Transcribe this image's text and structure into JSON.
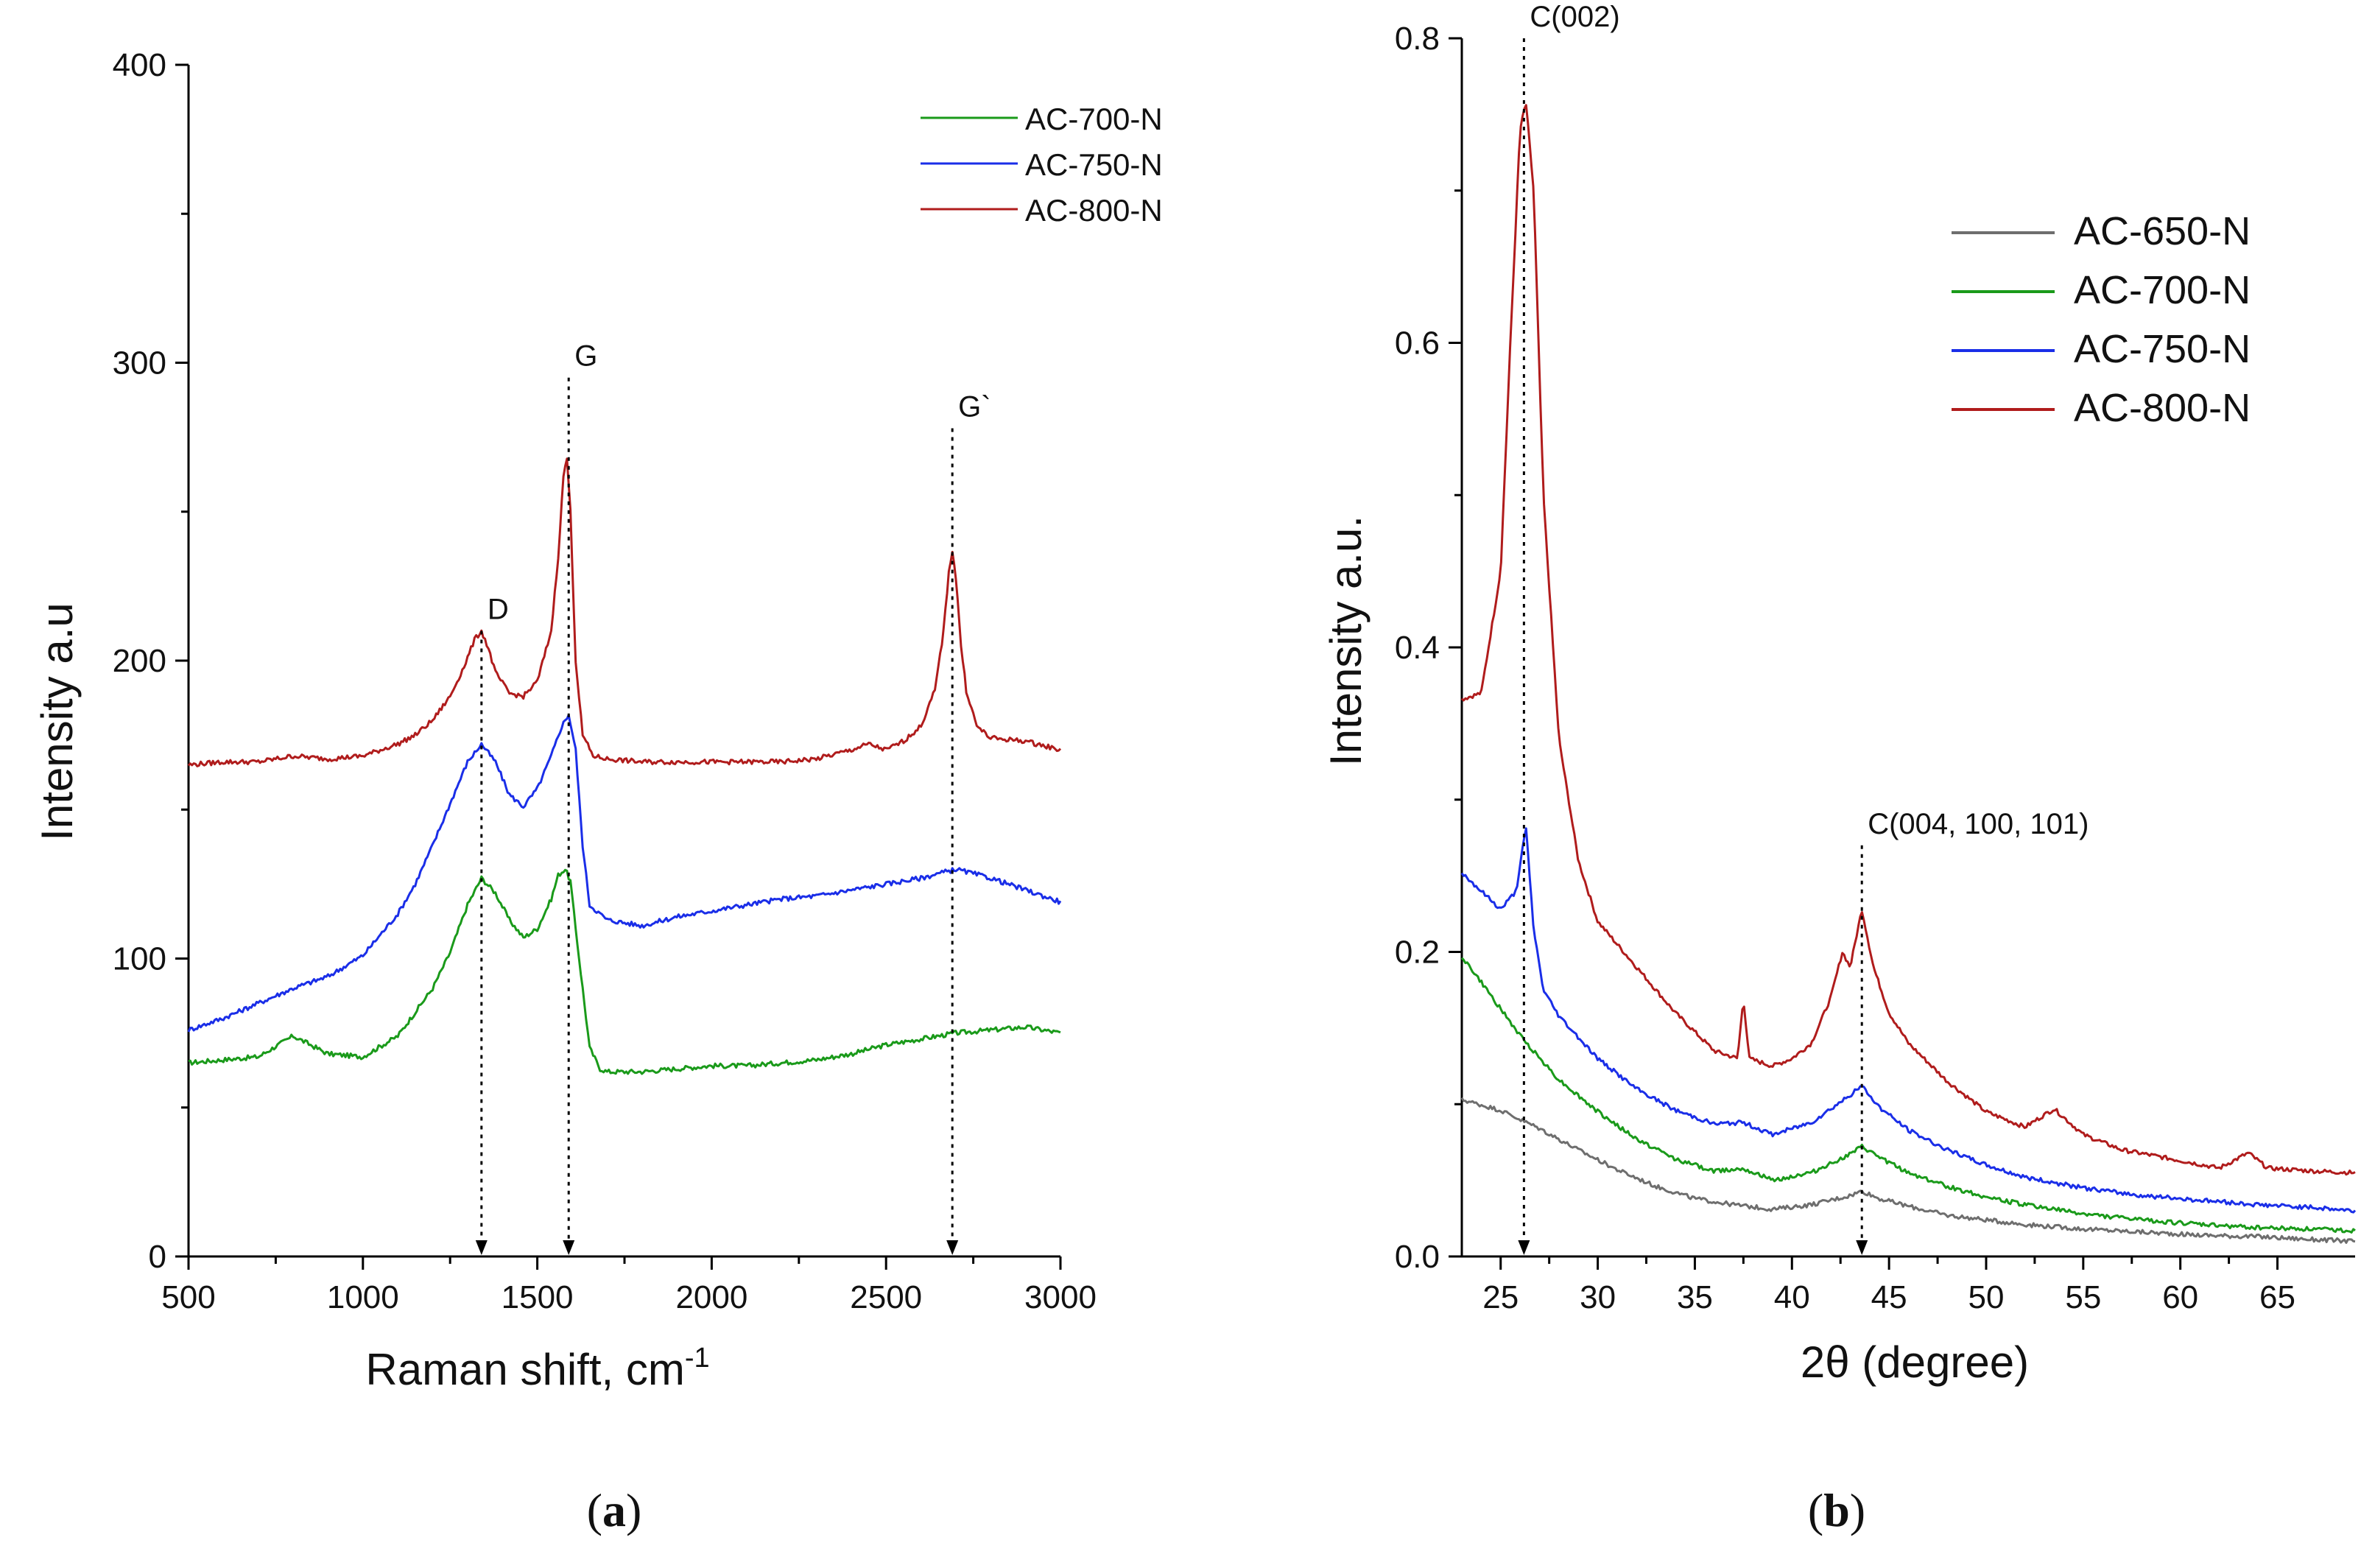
{
  "panels": {
    "a": {
      "label": "a"
    },
    "b": {
      "label": "b"
    }
  },
  "chart_data": [
    {
      "type": "line",
      "panel": "a",
      "xlabel": "Raman shift, cm",
      "xlabel_superscript": "-1",
      "ylabel": "Intensity a.u",
      "xlim": [
        500,
        3000
      ],
      "ylim": [
        0,
        400
      ],
      "xticks": [
        500,
        1000,
        1500,
        2000,
        2500,
        3000
      ],
      "yticks": [
        0,
        100,
        200,
        300,
        400
      ],
      "legend_position": "top-right",
      "series": [
        {
          "name": "AC-700-N",
          "color": "#1a9a1a",
          "x": [
            500,
            700,
            800,
            900,
            1000,
            1100,
            1200,
            1250,
            1300,
            1340,
            1380,
            1420,
            1460,
            1500,
            1540,
            1560,
            1580,
            1595,
            1610,
            1630,
            1650,
            1680,
            1700,
            1750,
            1800,
            1900,
            2000,
            2100,
            2200,
            2300,
            2400,
            2500,
            2600,
            2700,
            2800,
            2900,
            3000
          ],
          "y": [
            65,
            67,
            74,
            68,
            67,
            74,
            90,
            102,
            118,
            127,
            122,
            113,
            107,
            110,
            120,
            128,
            130,
            126,
            110,
            90,
            70,
            63,
            62,
            62,
            62,
            63,
            64,
            64,
            65,
            66,
            68,
            71,
            73,
            75,
            76,
            77,
            75
          ]
        },
        {
          "name": "AC-750-N",
          "color": "#1a2ee8",
          "x": [
            500,
            600,
            700,
            800,
            900,
            1000,
            1100,
            1150,
            1200,
            1250,
            1300,
            1340,
            1380,
            1420,
            1460,
            1500,
            1540,
            1570,
            1590,
            1610,
            1630,
            1650,
            1700,
            1750,
            1800,
            1900,
            2000,
            2100,
            2200,
            2300,
            2400,
            2500,
            2600,
            2700,
            2800,
            2900,
            3000
          ],
          "y": [
            76,
            80,
            85,
            90,
            94,
            101,
            115,
            125,
            138,
            152,
            166,
            172,
            166,
            155,
            151,
            157,
            168,
            178,
            182,
            170,
            138,
            118,
            113,
            112,
            111,
            114,
            116,
            118,
            120,
            121,
            123,
            125,
            127,
            130,
            127,
            123,
            119
          ]
        },
        {
          "name": "AC-800-N",
          "color": "#b01c1c",
          "x": [
            500,
            600,
            700,
            800,
            900,
            1000,
            1100,
            1150,
            1200,
            1250,
            1290,
            1320,
            1340,
            1360,
            1380,
            1420,
            1460,
            1500,
            1540,
            1560,
            1575,
            1585,
            1595,
            1610,
            1630,
            1660,
            1700,
            1800,
            1900,
            2000,
            2100,
            2200,
            2300,
            2400,
            2450,
            2500,
            2550,
            2600,
            2640,
            2665,
            2680,
            2690,
            2700,
            2715,
            2730,
            2760,
            2800,
            2900,
            3000
          ],
          "y": [
            165,
            166,
            166,
            168,
            167,
            168,
            172,
            175,
            180,
            188,
            198,
            207,
            210,
            204,
            196,
            189,
            188,
            193,
            210,
            235,
            262,
            268,
            250,
            200,
            175,
            168,
            167,
            166,
            166,
            166,
            166,
            166,
            167,
            170,
            172,
            170,
            173,
            178,
            190,
            210,
            230,
            237,
            228,
            205,
            190,
            178,
            174,
            173,
            170
          ]
        }
      ],
      "annotations": [
        {
          "label": "D",
          "x": 1340,
          "y": 210
        },
        {
          "label": "G",
          "x": 1590,
          "y": 295
        },
        {
          "label": "G`",
          "x": 2690,
          "y": 278
        }
      ]
    },
    {
      "type": "line",
      "panel": "b",
      "xlabel": "2θ (degree)",
      "ylabel": "Intensity a.u.",
      "xlim": [
        23,
        69
      ],
      "ylim": [
        0,
        0.8
      ],
      "xticks": [
        25,
        30,
        35,
        40,
        45,
        50,
        55,
        60,
        65
      ],
      "yticks": [
        "0.0",
        "0.2",
        "0.4",
        "0.6",
        "0.8"
      ],
      "legend_position": "top-right",
      "series": [
        {
          "name": "AC-650-N",
          "color": "#6e6e6e",
          "x": [
            23,
            25,
            27,
            29,
            31,
            33,
            35,
            37,
            39,
            41,
            43,
            43.6,
            44.5,
            46,
            48,
            50,
            52,
            55,
            58,
            61,
            64,
            67,
            69
          ],
          "y": [
            0.103,
            0.096,
            0.084,
            0.07,
            0.057,
            0.046,
            0.038,
            0.034,
            0.031,
            0.034,
            0.04,
            0.043,
            0.038,
            0.033,
            0.027,
            0.024,
            0.021,
            0.018,
            0.016,
            0.014,
            0.013,
            0.011,
            0.01
          ]
        },
        {
          "name": "AC-700-N",
          "color": "#1a9a1a",
          "x": [
            23,
            24,
            26,
            28,
            30,
            32,
            34,
            36,
            37.5,
            39,
            41,
            43,
            43.6,
            44.5,
            46,
            48,
            50,
            52,
            55,
            58,
            61,
            64,
            67,
            69
          ],
          "y": [
            0.197,
            0.18,
            0.145,
            0.116,
            0.095,
            0.077,
            0.064,
            0.056,
            0.058,
            0.05,
            0.055,
            0.067,
            0.072,
            0.065,
            0.055,
            0.046,
            0.039,
            0.034,
            0.028,
            0.024,
            0.021,
            0.019,
            0.018,
            0.017
          ]
        },
        {
          "name": "AC-750-N",
          "color": "#1a2ee8",
          "x": [
            23,
            24,
            25,
            25.8,
            26.3,
            26.7,
            27.2,
            28,
            30,
            32,
            34,
            36,
            37.5,
            39,
            41,
            43,
            43.6,
            44.5,
            46,
            48,
            50,
            52,
            55,
            58,
            61,
            64,
            67,
            69
          ],
          "y": [
            0.252,
            0.24,
            0.228,
            0.24,
            0.282,
            0.215,
            0.175,
            0.158,
            0.13,
            0.11,
            0.096,
            0.087,
            0.088,
            0.08,
            0.088,
            0.106,
            0.112,
            0.098,
            0.083,
            0.07,
            0.06,
            0.052,
            0.045,
            0.04,
            0.037,
            0.034,
            0.032,
            0.03
          ]
        },
        {
          "name": "AC-800-N",
          "color": "#b01c1c",
          "x": [
            23,
            24,
            25,
            25.5,
            26,
            26.3,
            26.7,
            27.2,
            28,
            29,
            30,
            32,
            34,
            36,
            37.2,
            37.5,
            37.8,
            39,
            40,
            41,
            42,
            42.6,
            43,
            43.6,
            44.2,
            45,
            46,
            48,
            50,
            52,
            53.5,
            55,
            57,
            60,
            62,
            63.5,
            64.5,
            67,
            69
          ],
          "y": [
            0.366,
            0.37,
            0.45,
            0.6,
            0.74,
            0.758,
            0.7,
            0.5,
            0.34,
            0.26,
            0.22,
            0.19,
            0.16,
            0.135,
            0.13,
            0.17,
            0.13,
            0.125,
            0.13,
            0.14,
            0.17,
            0.2,
            0.19,
            0.228,
            0.19,
            0.16,
            0.14,
            0.115,
            0.095,
            0.085,
            0.097,
            0.08,
            0.07,
            0.063,
            0.058,
            0.068,
            0.058,
            0.056,
            0.055
          ]
        }
      ],
      "annotations": [
        {
          "label": "C(002)",
          "x": 26.2,
          "y": 0.8
        },
        {
          "label": "C(004, 100, 101)",
          "x": 43.6,
          "y": 0.27
        }
      ]
    }
  ]
}
